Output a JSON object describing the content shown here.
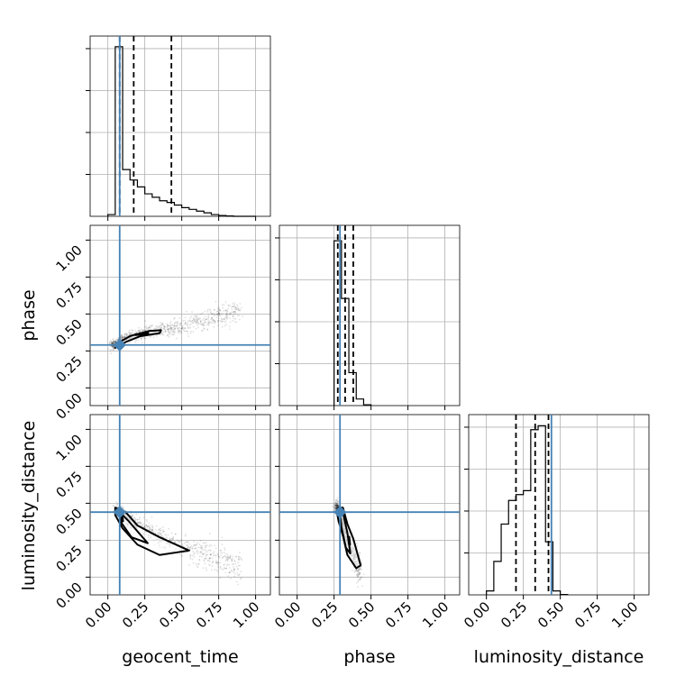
{
  "chart_data": {
    "type": "corner",
    "parameters": [
      "geocent_time",
      "phase",
      "luminosity_distance"
    ],
    "axis_range": [
      -0.12,
      1.1
    ],
    "ticks": [
      0.0,
      0.25,
      0.5,
      0.75,
      1.0
    ],
    "tick_labels": [
      "0.00",
      "0.25",
      "0.50",
      "0.75",
      "1.00"
    ],
    "truths": {
      "geocent_time": 0.08,
      "phase": 0.29,
      "luminosity_distance": 0.44
    },
    "truth_color": "#4682b4",
    "grid": true,
    "marginals": [
      {
        "parameter": "geocent_time",
        "bin_edges": [
          0.0,
          0.05,
          0.1,
          0.15,
          0.2,
          0.25,
          0.3,
          0.35,
          0.4,
          0.45,
          0.5,
          0.55,
          0.6,
          0.65,
          0.7,
          0.75,
          0.8,
          0.85,
          0.9,
          0.95,
          1.0
        ],
        "counts": [
          0.01,
          0.98,
          0.27,
          0.21,
          0.17,
          0.13,
          0.11,
          0.09,
          0.08,
          0.065,
          0.05,
          0.04,
          0.03,
          0.02,
          0.01,
          0.005,
          0.002,
          0,
          0,
          0
        ],
        "quantiles": [
          0.08,
          0.175,
          0.43
        ],
        "ymax": 1.0
      },
      {
        "parameter": "phase",
        "bin_edges": [
          0.25,
          0.3,
          0.35,
          0.4,
          0.45,
          0.5
        ],
        "counts": [
          1.0,
          0.65,
          0.2,
          0.04,
          0.005
        ],
        "quantiles": [
          0.275,
          0.325,
          0.38
        ],
        "ymax": 1.05
      },
      {
        "parameter": "luminosity_distance",
        "bin_edges": [
          0.0,
          0.05,
          0.1,
          0.15,
          0.2,
          0.25,
          0.3,
          0.35,
          0.4,
          0.45,
          0.5,
          0.55
        ],
        "counts": [
          0.02,
          0.17,
          0.36,
          0.48,
          0.51,
          0.53,
          0.84,
          0.86,
          0.27,
          0.02,
          0.002
        ],
        "quantiles": [
          0.2,
          0.33,
          0.42
        ],
        "ymax": 0.88
      }
    ],
    "joint": [
      {
        "x": "geocent_time",
        "y": "phase",
        "cloud_trend": [
          [
            0.03,
            0.29
          ],
          [
            0.15,
            0.35
          ],
          [
            0.3,
            0.38
          ],
          [
            0.5,
            0.42
          ],
          [
            0.7,
            0.47
          ],
          [
            0.9,
            0.53
          ]
        ],
        "cloud_spread": 0.025,
        "contours": [
          [
            [
              0.05,
              0.27
            ],
            [
              0.08,
              0.31
            ],
            [
              0.15,
              0.35
            ],
            [
              0.28,
              0.385
            ],
            [
              0.36,
              0.39
            ],
            [
              0.35,
              0.37
            ],
            [
              0.22,
              0.35
            ],
            [
              0.12,
              0.31
            ],
            [
              0.06,
              0.275
            ]
          ],
          [
            [
              0.19,
              0.36
            ],
            [
              0.27,
              0.37
            ]
          ]
        ]
      },
      {
        "x": "geocent_time",
        "y": "luminosity_distance",
        "cloud_trend": [
          [
            0.06,
            0.45
          ],
          [
            0.15,
            0.38
          ],
          [
            0.3,
            0.3
          ],
          [
            0.5,
            0.2
          ],
          [
            0.7,
            0.14
          ],
          [
            0.9,
            0.08
          ]
        ],
        "cloud_spread": 0.035,
        "contours": [
          [
            [
              0.05,
              0.47
            ],
            [
              0.12,
              0.44
            ],
            [
              0.2,
              0.35
            ],
            [
              0.35,
              0.27
            ],
            [
              0.55,
              0.18
            ],
            [
              0.35,
              0.15
            ],
            [
              0.2,
              0.22
            ],
            [
              0.1,
              0.33
            ],
            [
              0.05,
              0.42
            ],
            [
              0.05,
              0.47
            ]
          ],
          [
            [
              0.08,
              0.44
            ],
            [
              0.14,
              0.38
            ],
            [
              0.2,
              0.31
            ],
            [
              0.27,
              0.23
            ],
            [
              0.16,
              0.27
            ],
            [
              0.09,
              0.37
            ],
            [
              0.08,
              0.44
            ]
          ],
          [
            [
              0.09,
              0.43
            ],
            [
              0.1,
              0.38
            ]
          ]
        ]
      },
      {
        "x": "phase",
        "y": "luminosity_distance",
        "cloud_trend": [
          [
            0.27,
            0.47
          ],
          [
            0.3,
            0.4
          ],
          [
            0.33,
            0.3
          ],
          [
            0.36,
            0.2
          ],
          [
            0.4,
            0.1
          ],
          [
            0.43,
            0.05
          ]
        ],
        "cloud_spread": 0.035,
        "contours": [
          [
            [
              0.28,
              0.47
            ],
            [
              0.31,
              0.47
            ],
            [
              0.34,
              0.36
            ],
            [
              0.38,
              0.26
            ],
            [
              0.43,
              0.08
            ],
            [
              0.4,
              0.06
            ],
            [
              0.34,
              0.15
            ],
            [
              0.31,
              0.28
            ],
            [
              0.28,
              0.38
            ],
            [
              0.27,
              0.44
            ],
            [
              0.28,
              0.47
            ]
          ],
          [
            [
              0.29,
              0.46
            ],
            [
              0.31,
              0.44
            ],
            [
              0.34,
              0.3
            ],
            [
              0.36,
              0.16
            ],
            [
              0.33,
              0.2
            ],
            [
              0.3,
              0.34
            ],
            [
              0.29,
              0.42
            ],
            [
              0.29,
              0.46
            ]
          ],
          [
            [
              0.35,
              0.27
            ],
            [
              0.355,
              0.22
            ]
          ]
        ]
      }
    ]
  }
}
